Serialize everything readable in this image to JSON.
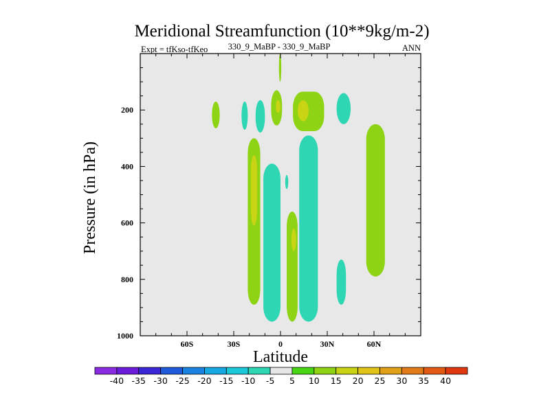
{
  "chart_data": {
    "type": "contour",
    "title": "Meridional Streamfunction (10**9kg/m-2)",
    "left_subtitle": "Expt = tfKso-tfKeo",
    "center_subtitle": "330_9_MaBP - 330_9_MaBP",
    "right_subtitle": "ANN",
    "xlabel": "Latitude",
    "ylabel": "Pressure (in hPa)",
    "xlim": [
      -90,
      90
    ],
    "ylim": [
      1000,
      0
    ],
    "x_ticks": [
      {
        "value": -60,
        "label": "60S"
      },
      {
        "value": -30,
        "label": "30S"
      },
      {
        "value": 0,
        "label": "0"
      },
      {
        "value": 30,
        "label": "30N"
      },
      {
        "value": 60,
        "label": "60N"
      }
    ],
    "y_ticks": [
      {
        "value": 200,
        "label": "200"
      },
      {
        "value": 400,
        "label": "400"
      },
      {
        "value": 600,
        "label": "600"
      },
      {
        "value": 800,
        "label": "800"
      },
      {
        "value": 1000,
        "label": "1000"
      }
    ],
    "background_color": "#e8e8e8",
    "colorbar": {
      "labels": [
        "-40",
        "-35",
        "-30",
        "-25",
        "-20",
        "-15",
        "-10",
        "-5",
        "5",
        "10",
        "15",
        "20",
        "25",
        "30",
        "35",
        "40"
      ],
      "colors": [
        "#8a2be2",
        "#6a1cd8",
        "#3a28d6",
        "#1f5ad8",
        "#1a82e0",
        "#16a8e2",
        "#1ac8d8",
        "#2ed6b4",
        "#e6e6e6",
        "#46d614",
        "#8ed414",
        "#c8d414",
        "#e0c418",
        "#e0a018",
        "#e27c18",
        "#e25a12",
        "#e0380e"
      ]
    },
    "regions": [
      {
        "lat_range": [
          -44,
          -39
        ],
        "p_range": [
          170,
          265
        ],
        "value": 10
      },
      {
        "lat_range": [
          -25,
          -21
        ],
        "p_range": [
          170,
          270
        ],
        "value": -7
      },
      {
        "lat_range": [
          -16,
          -10
        ],
        "p_range": [
          165,
          280
        ],
        "value": -7
      },
      {
        "lat_range": [
          -6,
          1
        ],
        "p_range": [
          130,
          255
        ],
        "value": 10
      },
      {
        "lat_range": [
          -3,
          0
        ],
        "p_range": [
          165,
          210
        ],
        "value": 15
      },
      {
        "lat_range": [
          -1,
          0.5
        ],
        "p_range": [
          0,
          100
        ],
        "value": 10
      },
      {
        "lat_range": [
          8,
          28
        ],
        "p_range": [
          135,
          275
        ],
        "value": 10
      },
      {
        "lat_range": [
          11,
          18
        ],
        "p_range": [
          165,
          240
        ],
        "value": 15
      },
      {
        "lat_range": [
          36,
          45
        ],
        "p_range": [
          140,
          250
        ],
        "value": -7
      },
      {
        "lat_range": [
          -21,
          -13
        ],
        "p_range": [
          300,
          890
        ],
        "value": 10
      },
      {
        "lat_range": [
          -19,
          -15
        ],
        "p_range": [
          360,
          610
        ],
        "value": 15
      },
      {
        "lat_range": [
          -4,
          -1
        ],
        "p_range": [
          410,
          480
        ],
        "value": 10
      },
      {
        "lat_range": [
          3,
          5
        ],
        "p_range": [
          430,
          480
        ],
        "value": -7
      },
      {
        "lat_range": [
          12,
          24
        ],
        "p_range": [
          290,
          950
        ],
        "value": -7
      },
      {
        "lat_range": [
          14,
          20
        ],
        "p_range": [
          420,
          500
        ],
        "value": -10
      },
      {
        "lat_range": [
          -11,
          0
        ],
        "p_range": [
          390,
          950
        ],
        "value": -7
      },
      {
        "lat_range": [
          -8,
          -3
        ],
        "p_range": [
          700,
          810
        ],
        "value": -10
      },
      {
        "lat_range": [
          4,
          11
        ],
        "p_range": [
          560,
          950
        ],
        "value": 10
      },
      {
        "lat_range": [
          7,
          10
        ],
        "p_range": [
          620,
          700
        ],
        "value": 15
      },
      {
        "lat_range": [
          36,
          42
        ],
        "p_range": [
          730,
          890
        ],
        "value": -7
      },
      {
        "lat_range": [
          55,
          67
        ],
        "p_range": [
          250,
          790
        ],
        "value": 10
      }
    ]
  }
}
